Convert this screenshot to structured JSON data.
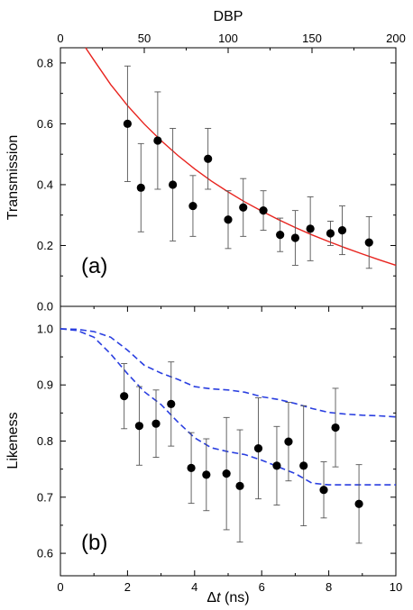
{
  "chart_data": [
    {
      "panel": "(a)",
      "type": "scatter",
      "top_xlabel": "DBP",
      "top_xlim": [
        0,
        200
      ],
      "top_xticks": [
        "0",
        "50",
        "100",
        "150",
        "200"
      ],
      "ylabel": "Transmission",
      "ylim": [
        0.0,
        0.85
      ],
      "yticks": [
        "0.0",
        "0.2",
        "0.4",
        "0.6",
        "0.8"
      ],
      "series": [
        {
          "kind": "points-with-errorbars",
          "color": "#000000",
          "x": [
            40,
            48,
            58,
            67,
            79,
            88,
            100,
            109,
            121,
            131,
            140,
            149,
            161,
            168,
            184
          ],
          "y": [
            0.6,
            0.39,
            0.545,
            0.4,
            0.33,
            0.485,
            0.285,
            0.325,
            0.315,
            0.235,
            0.225,
            0.255,
            0.24,
            0.25,
            0.21
          ],
          "err": [
            0.19,
            0.145,
            0.16,
            0.185,
            0.1,
            0.1,
            0.095,
            0.095,
            0.065,
            0.055,
            0.09,
            0.105,
            0.04,
            0.08,
            0.085
          ]
        },
        {
          "kind": "curve",
          "color": "#e8231e",
          "x": [
            15,
            20,
            30,
            40,
            50,
            60,
            70,
            80,
            90,
            100,
            110,
            120,
            130,
            140,
            150,
            160,
            170,
            180,
            190,
            200
          ],
          "y": [
            0.85,
            0.809,
            0.729,
            0.66,
            0.599,
            0.545,
            0.496,
            0.452,
            0.412,
            0.376,
            0.343,
            0.313,
            0.285,
            0.259,
            0.235,
            0.213,
            0.192,
            0.172,
            0.153,
            0.135
          ]
        }
      ]
    },
    {
      "panel": "(b)",
      "type": "scatter",
      "xlabel": "Δt (ns)",
      "xlim": [
        0,
        10
      ],
      "xticks": [
        "0",
        "2",
        "4",
        "6",
        "8",
        "10"
      ],
      "ylabel": "Likeness",
      "ylim": [
        0.56,
        1.04
      ],
      "yticks": [
        "0.6",
        "0.7",
        "0.8",
        "0.9",
        "1.0"
      ],
      "series": [
        {
          "kind": "points-with-errorbars",
          "color": "#000000",
          "x": [
            1.9,
            2.35,
            2.85,
            3.3,
            3.9,
            4.35,
            4.95,
            5.35,
            5.9,
            6.45,
            6.8,
            7.25,
            7.85,
            8.2,
            8.9
          ],
          "y": [
            0.88,
            0.827,
            0.831,
            0.866,
            0.752,
            0.74,
            0.742,
            0.72,
            0.787,
            0.756,
            0.799,
            0.756,
            0.713,
            0.824,
            0.688
          ],
          "err": [
            0.058,
            0.07,
            0.06,
            0.075,
            0.063,
            0.064,
            0.1,
            0.1,
            0.09,
            0.07,
            0.07,
            0.107,
            0.05,
            0.07,
            0.07
          ]
        },
        {
          "kind": "dashed-curve",
          "color": "#2a3fe0",
          "x": [
            0,
            0.5,
            1.0,
            1.5,
            2.0,
            2.5,
            3.0,
            3.5,
            4.0,
            4.5,
            5.0,
            5.5,
            6.0,
            6.5,
            7.0,
            7.5,
            8.0,
            8.5,
            9.0,
            9.5,
            10.0
          ],
          "y": [
            1.0,
            0.999,
            0.995,
            0.985,
            0.962,
            0.935,
            0.921,
            0.91,
            0.897,
            0.893,
            0.891,
            0.887,
            0.879,
            0.874,
            0.867,
            0.858,
            0.851,
            0.848,
            0.846,
            0.845,
            0.843
          ]
        },
        {
          "kind": "dashed-curve",
          "color": "#2a3fe0",
          "x": [
            0,
            0.5,
            1.0,
            1.5,
            2.0,
            2.5,
            3.0,
            3.5,
            4.0,
            4.5,
            5.0,
            5.5,
            6.0,
            6.5,
            7.0,
            7.5,
            8.0,
            8.5,
            9.0,
            9.5,
            10.0
          ],
          "y": [
            1.0,
            0.997,
            0.985,
            0.955,
            0.92,
            0.888,
            0.865,
            0.834,
            0.806,
            0.788,
            0.781,
            0.776,
            0.766,
            0.754,
            0.742,
            0.725,
            0.722,
            0.722,
            0.722,
            0.722,
            0.722
          ]
        }
      ]
    }
  ],
  "labels": {
    "top_xlabel": "DBP",
    "panel_a": "(a)",
    "panel_b": "(b)",
    "ylabel_a": "Transmission",
    "ylabel_b": "Likeness",
    "xlabel_b_symbol": "Δ",
    "xlabel_b_var": "t",
    "xlabel_b_unit": " (ns)"
  }
}
